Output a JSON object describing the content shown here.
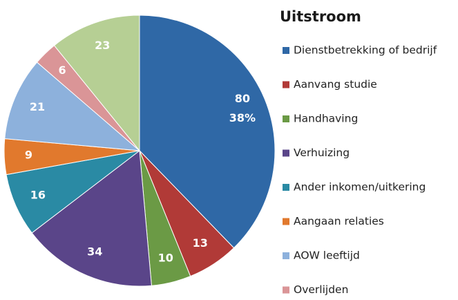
{
  "chart_data": {
    "type": "pie",
    "title": "Uitstroom",
    "categories": [
      "Dienstbetrekking of bedrijf",
      "Aanvang studie",
      "Handhaving",
      "Verhuizing",
      "Ander inkomen/uitkering",
      "Aangaan relaties",
      "AOW leeftijd",
      "Overlijden",
      null
    ],
    "values": [
      80,
      13,
      10,
      34,
      16,
      9,
      21,
      6,
      23
    ],
    "percent_labels": [
      "38%",
      null,
      null,
      null,
      null,
      null,
      null,
      null,
      null
    ],
    "colors": [
      "#2f68a6",
      "#b13a37",
      "#6b9a45",
      "#5a4589",
      "#2a8aa4",
      "#e1792d",
      "#8db1dc",
      "#da9597",
      "#b6cf94"
    ],
    "start_angle": 0,
    "direction": "clockwise",
    "legend": "right"
  }
}
